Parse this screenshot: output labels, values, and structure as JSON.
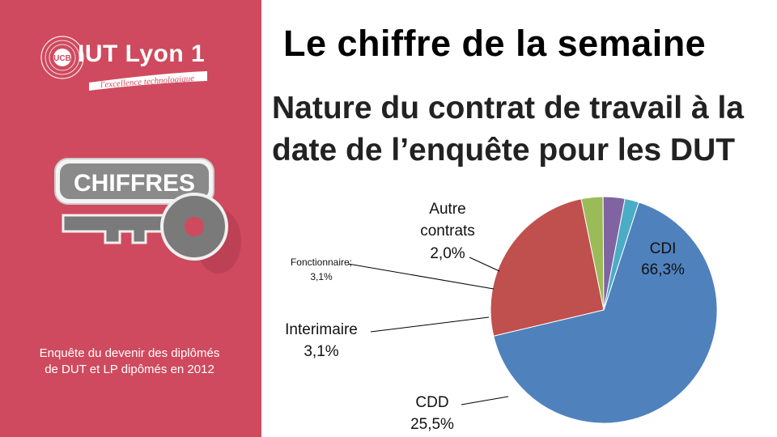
{
  "logo": {
    "name": "IUT Lyon 1",
    "tagline": "l'excellence technologique",
    "mark_text": "UCB"
  },
  "badge": {
    "label": "CHIFFRES"
  },
  "note": {
    "text": "Enquête du devenir des diplômés de DUT et LP dipômés en 2012"
  },
  "page_title": "Le chiffre de la semaine",
  "colors": {
    "sidebar": "#cf4a5e",
    "cdi": "#4f81bd",
    "cdd": "#c0504d",
    "interimaire": "#9bbb59",
    "fonctionnaire": "#8064a2",
    "autre": "#4bacc6"
  },
  "chart_data": {
    "type": "pie",
    "title": "Nature du contrat de travail à la date de l’enquête pour les DUT",
    "slices": [
      {
        "name": "CDI",
        "value": 66.3,
        "label": "66,3%",
        "color": "#4f81bd"
      },
      {
        "name": "CDD",
        "value": 25.5,
        "label": "25,5%",
        "color": "#c0504d"
      },
      {
        "name": "Interimaire",
        "value": 3.1,
        "label": "3,1%",
        "color": "#9bbb59"
      },
      {
        "name": "Fonctionnaire",
        "value": 3.1,
        "label": "3,1%",
        "color": "#8064a2"
      },
      {
        "name": "Autre contrats",
        "value": 2.0,
        "label": "2,0%",
        "color": "#4bacc6"
      }
    ],
    "display_labels": {
      "cdi_name": "CDI",
      "cdi_value": "66,3%",
      "cdd_name": "CDD",
      "cdd_value": "25,5%",
      "interimaire_name": "Interimaire",
      "interimaire_value": "3,1%",
      "fonctionnaire_name": "Fonctionnaire;",
      "fonctionnaire_value": "3,1%",
      "autre_line1": "Autre",
      "autre_line2": "contrats",
      "autre_value": "2,0%"
    }
  }
}
